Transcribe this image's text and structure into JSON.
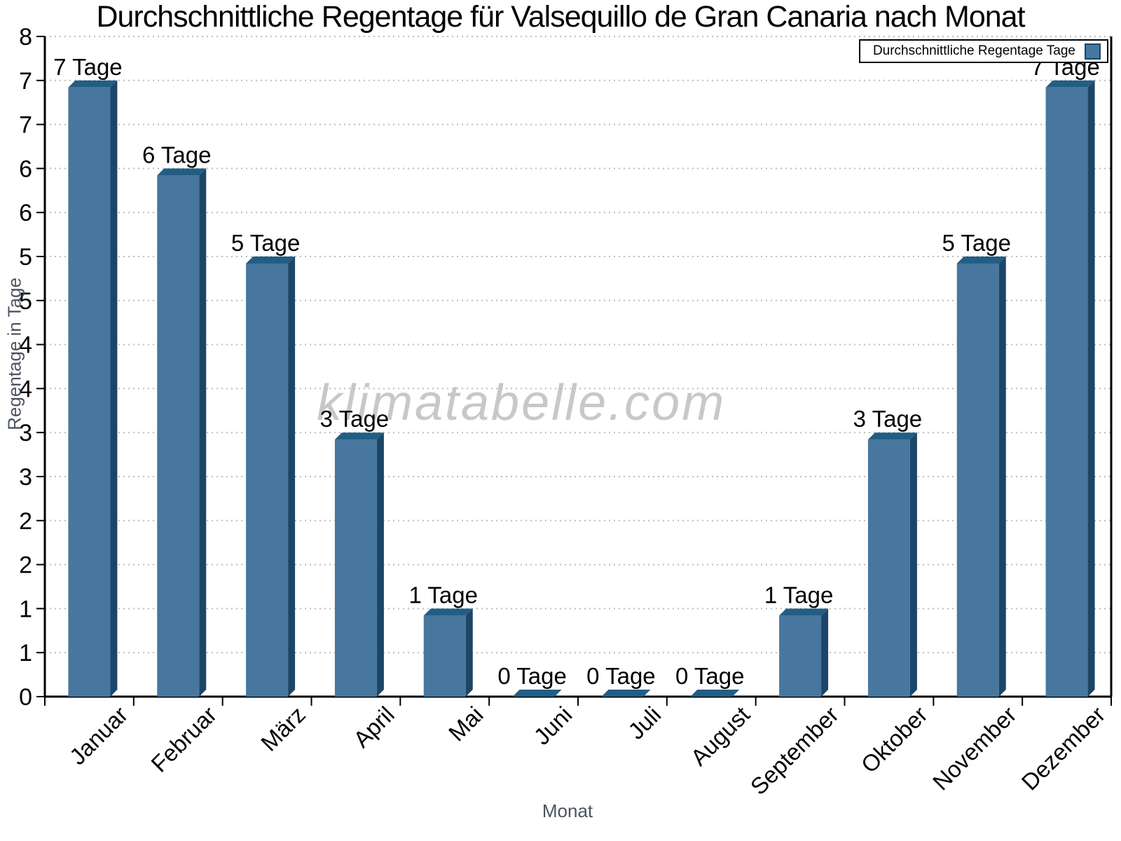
{
  "title": "Durchschnittliche Regentage für Valsequillo de Gran Canaria nach Monat",
  "watermark": "klimatabelle.com",
  "legend": {
    "label": "Durchschnittliche Regentage Tage"
  },
  "axes": {
    "x_title": "Monat",
    "y_title": "Regentage in Tage"
  },
  "chart_data": {
    "type": "bar",
    "title": "Durchschnittliche Regentage für Valsequillo de Gran Canaria nach Monat",
    "categories": [
      "Januar",
      "Februar",
      "März",
      "April",
      "Mai",
      "Juni",
      "Juli",
      "August",
      "September",
      "Oktober",
      "November",
      "Dezember"
    ],
    "values": [
      7,
      6,
      5,
      3,
      1,
      0,
      0,
      0,
      1,
      3,
      5,
      7
    ],
    "bar_value_labels": [
      "7 Tage",
      "6 Tage",
      "5 Tage",
      "3 Tage",
      "1 Tage",
      "0 Tage",
      "0 Tage",
      "0 Tage",
      "1 Tage",
      "3 Tage",
      "5 Tage",
      "7 Tage"
    ],
    "xlabel": "Monat",
    "ylabel": "Regentage in Tage",
    "ylim": [
      0,
      7.5
    ],
    "y_tick_step": 0.5,
    "y_tick_labels_top_to_bottom": [
      "8",
      "7",
      "7",
      "6",
      "6",
      "5",
      "5",
      "4",
      "4",
      "3",
      "3",
      "2",
      "2",
      "1",
      "1",
      "0"
    ],
    "grid": "dotted horizontal gridlines at every 0.5 step",
    "legend_position": "top-right",
    "legend_entries": [
      "Durchschnittliche Regentage Tage"
    ],
    "colors": {
      "bar_face": "#47779E",
      "bar_top": "#235D84",
      "bar_side": "#1C4667",
      "gridline": "#BCBCBC",
      "axis": "#000000",
      "tick_label": "#000000",
      "axis_title": "#4C545F",
      "watermark": "#C8C8C8"
    }
  }
}
